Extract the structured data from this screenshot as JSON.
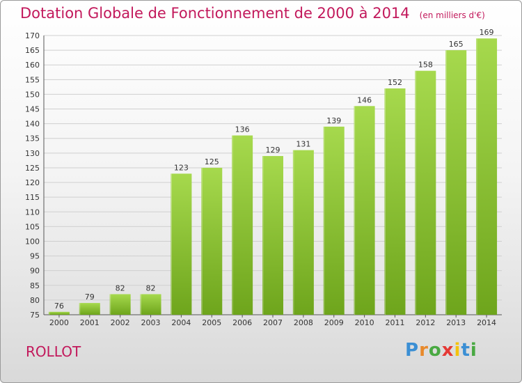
{
  "header": {
    "title": "Dotation Globale de Fonctionnement de 2000 à 2014",
    "unit": "(en milliers d'€)"
  },
  "commune": "ROLLOT",
  "logo": {
    "text": "Proxiti",
    "letter_colors": [
      "#3b8fd4",
      "#e8892b",
      "#49a942",
      "#e53935",
      "#f4c20d",
      "#3b8fd4",
      "#49a942"
    ]
  },
  "colors": {
    "title": "#c2185b",
    "bar_light": "#a6d94d",
    "bar_dark": "#6ea51c",
    "grid": "#cfcfcf"
  },
  "chart_data": {
    "type": "bar",
    "title": "Dotation Globale de Fonctionnement de 2000 à 2014",
    "subtitle": "(en milliers d'€)",
    "categories": [
      "2000",
      "2001",
      "2002",
      "2003",
      "2004",
      "2005",
      "2006",
      "2007",
      "2008",
      "2009",
      "2010",
      "2011",
      "2012",
      "2013",
      "2014"
    ],
    "values": [
      76,
      79,
      82,
      82,
      123,
      125,
      136,
      129,
      131,
      139,
      146,
      152,
      158,
      165,
      169
    ],
    "ylim": [
      75,
      170
    ],
    "yticks": [
      75,
      80,
      85,
      90,
      95,
      100,
      105,
      110,
      115,
      120,
      125,
      130,
      135,
      140,
      145,
      150,
      155,
      160,
      165,
      170
    ],
    "grid": true,
    "xlabel": "",
    "ylabel": ""
  }
}
